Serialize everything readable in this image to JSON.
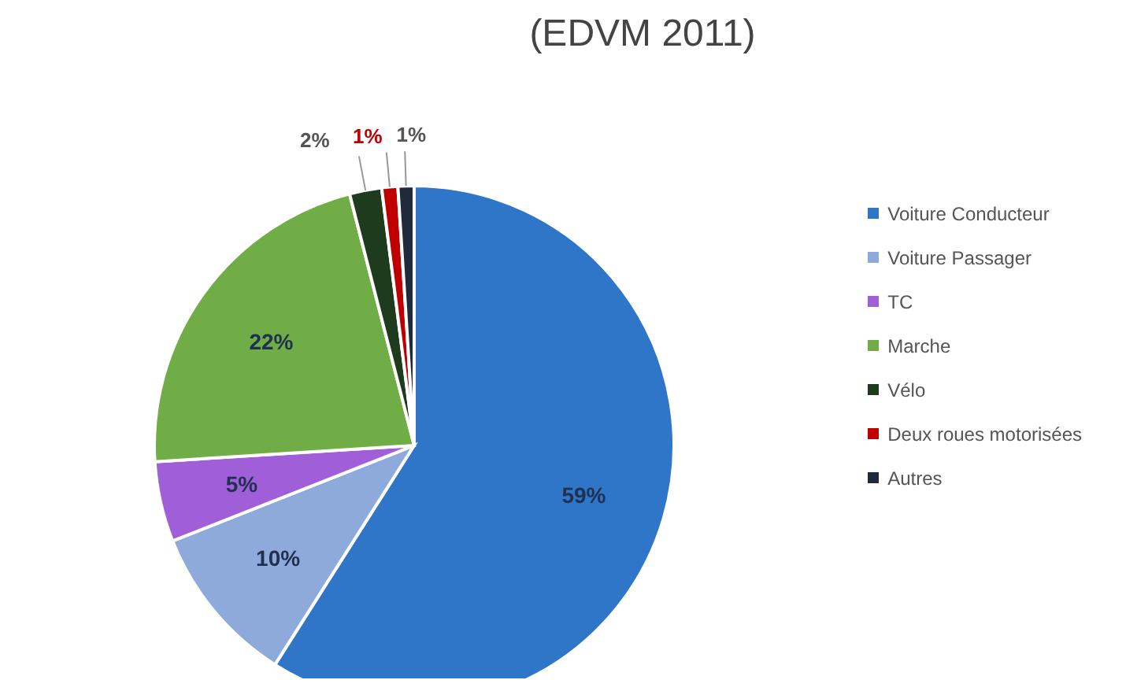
{
  "chart_data": {
    "type": "pie",
    "title": "(EDVM 2011)",
    "categories": [
      "Voiture Conducteur",
      "Voiture Passager",
      "TC",
      "Marche",
      "Vélo",
      "Deux roues motorisées",
      "Autres"
    ],
    "values": [
      59,
      10,
      5,
      22,
      2,
      1,
      1
    ],
    "colors": [
      "#2f75c8",
      "#8eaadb",
      "#a05ed8",
      "#70ad47",
      "#1e3b1e",
      "#c00000",
      "#1f2a3a"
    ],
    "value_labels": [
      "59%",
      "10%",
      "5%",
      "22%",
      "2%",
      "1%",
      "1%"
    ],
    "legend": "right"
  }
}
